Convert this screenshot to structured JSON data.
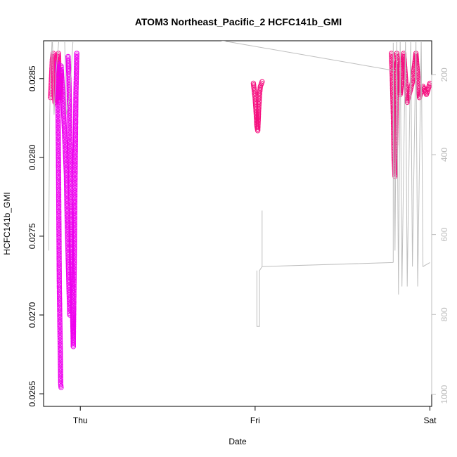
{
  "chart_data": {
    "type": "scatter",
    "title": "ATOM3 Northeast_Pacific_2 HCFC141b_GMI",
    "xlabel": "Date",
    "ylabel": "HCFC141b_GMI",
    "x_ticks": [
      "Thu",
      "Fri",
      "Sat"
    ],
    "y_ticks": [
      "0.0265",
      "0.0270",
      "0.0275",
      "0.0280",
      "0.0285"
    ],
    "y2_ticks": [
      "200",
      "400",
      "600",
      "800",
      "1000"
    ],
    "ylim": [
      0.02642,
      0.02874
    ],
    "y2lim": [
      1030,
      115
    ],
    "xlim_days": [
      -0.21,
      2.01
    ],
    "grid": false,
    "legend": "none",
    "colors": {
      "marker_pink": "#ff1493",
      "marker_magenta": "#ee00ee",
      "marker_mix": "#f5107f",
      "pressure_line": "#bebebe"
    },
    "series": [
      {
        "color": "#ff1493",
        "segments": [
          {
            "x_start": -0.17,
            "x_end": -0.14,
            "points": [
              [
                -0.17,
                0.02838
              ],
              [
                -0.165,
                0.0285
              ],
              [
                -0.16,
                0.02862
              ],
              [
                -0.155,
                0.02866
              ],
              [
                -0.15,
                0.02845
              ],
              [
                -0.145,
                0.02835
              ],
              [
                -0.14,
                0.0286
              ]
            ]
          },
          {
            "x_start": -0.14,
            "x_end": -0.11,
            "points": [
              [
                -0.14,
                0.02834
              ],
              [
                -0.135,
                0.02848
              ],
              [
                -0.13,
                0.02862
              ],
              [
                -0.125,
                0.02866
              ],
              [
                -0.12,
                0.0285
              ],
              [
                -0.115,
                0.02836
              ],
              [
                -0.11,
                0.02854
              ]
            ]
          }
        ]
      },
      {
        "color": "#ee00ee",
        "segments": [
          {
            "x_start": -0.13,
            "x_end": -0.11,
            "points": [
              [
                -0.13,
                0.0286
              ],
              [
                -0.125,
                0.028
              ],
              [
                -0.12,
                0.0272
              ],
              [
                -0.115,
                0.0268
              ],
              [
                -0.112,
                0.02656
              ],
              [
                -0.11,
                0.02654
              ]
            ]
          },
          {
            "x_start": -0.11,
            "x_end": -0.06,
            "points": [
              [
                -0.11,
                0.02858
              ],
              [
                -0.1,
                0.0284
              ],
              [
                -0.09,
                0.02815
              ],
              [
                -0.08,
                0.0279
              ],
              [
                -0.075,
                0.0276
              ],
              [
                -0.07,
                0.0274
              ],
              [
                -0.065,
                0.02718
              ],
              [
                -0.06,
                0.027
              ]
            ]
          },
          {
            "x_start": -0.07,
            "x_end": -0.04,
            "points": [
              [
                -0.07,
                0.02864
              ],
              [
                -0.065,
                0.0285
              ],
              [
                -0.06,
                0.0282
              ],
              [
                -0.055,
                0.0278
              ],
              [
                -0.05,
                0.0274
              ],
              [
                -0.045,
                0.02705
              ],
              [
                -0.04,
                0.0268
              ]
            ]
          },
          {
            "x_start": -0.04,
            "x_end": -0.02,
            "points": [
              [
                -0.04,
                0.0268
              ],
              [
                -0.035,
                0.0273
              ],
              [
                -0.03,
                0.0279
              ],
              [
                -0.025,
                0.0284
              ],
              [
                -0.02,
                0.02866
              ]
            ]
          }
        ]
      },
      {
        "color": "#f5107f",
        "segments": [
          {
            "x_start": 0.99,
            "x_end": 1.04,
            "points": [
              [
                0.99,
                0.02847
              ],
              [
                1.0,
                0.02838
              ],
              [
                1.005,
                0.0283
              ],
              [
                1.01,
                0.0282
              ],
              [
                1.015,
                0.02817
              ],
              [
                1.02,
                0.0283
              ],
              [
                1.025,
                0.0284
              ],
              [
                1.03,
                0.02845
              ],
              [
                1.04,
                0.02848
              ]
            ]
          },
          {
            "x_start": 1.78,
            "x_end": 1.81,
            "points": [
              [
                1.78,
                0.02866
              ],
              [
                1.785,
                0.0285
              ],
              [
                1.79,
                0.0283
              ],
              [
                1.795,
                0.028
              ],
              [
                1.8,
                0.02788
              ],
              [
                1.805,
                0.0282
              ],
              [
                1.81,
                0.0286
              ]
            ]
          },
          {
            "x_start": 1.81,
            "x_end": 2.01,
            "points": [
              [
                1.81,
                0.02866
              ],
              [
                1.83,
                0.0284
              ],
              [
                1.85,
                0.02866
              ],
              [
                1.87,
                0.02835
              ],
              [
                1.9,
                0.02848
              ],
              [
                1.92,
                0.02866
              ],
              [
                1.94,
                0.02838
              ],
              [
                1.96,
                0.02845
              ],
              [
                1.98,
                0.0284
              ],
              [
                2.0,
                0.02847
              ]
            ]
          }
        ]
      },
      {
        "name": "",
        "color": "#bebebe",
        "axis": "right",
        "lines": [
          [
            [
              -0.18,
              640
            ],
            [
              -0.18,
              580
            ],
            [
              -0.175,
              300
            ],
            [
              -0.17,
              200
            ],
            [
              -0.16,
              100
            ],
            [
              -0.15,
              300
            ],
            [
              -0.14,
              200
            ],
            [
              -0.12,
              100
            ]
          ],
          [
            [
              -0.09,
              100
            ],
            [
              -0.08,
              300
            ],
            [
              -0.06,
              250
            ],
            [
              -0.04,
              100
            ]
          ],
          [
            [
              1.01,
              690
            ],
            [
              1.01,
              830
            ],
            [
              1.025,
              830
            ],
            [
              1.025,
              690
            ],
            [
              1.04,
              680
            ],
            [
              1.04,
              540
            ]
          ],
          [
            [
              1.04,
              680
            ],
            [
              1.79,
              670
            ]
          ],
          [
            [
              1.79,
              670
            ],
            [
              1.79,
              120
            ],
            [
              1.8,
              640
            ],
            [
              1.81,
              110
            ],
            [
              1.82,
              750
            ],
            [
              1.83,
              110
            ],
            [
              1.84,
              730
            ],
            [
              1.86,
              110
            ],
            [
              1.87,
              730
            ],
            [
              1.89,
              110
            ],
            [
              1.9,
              680
            ],
            [
              1.92,
              110
            ],
            [
              1.93,
              730
            ],
            [
              1.95,
              110
            ],
            [
              1.96,
              680
            ],
            [
              2.0,
              670
            ]
          ],
          [
            [
              0.75,
              110
            ],
            [
              1.8,
              190
            ]
          ]
        ]
      }
    ]
  }
}
